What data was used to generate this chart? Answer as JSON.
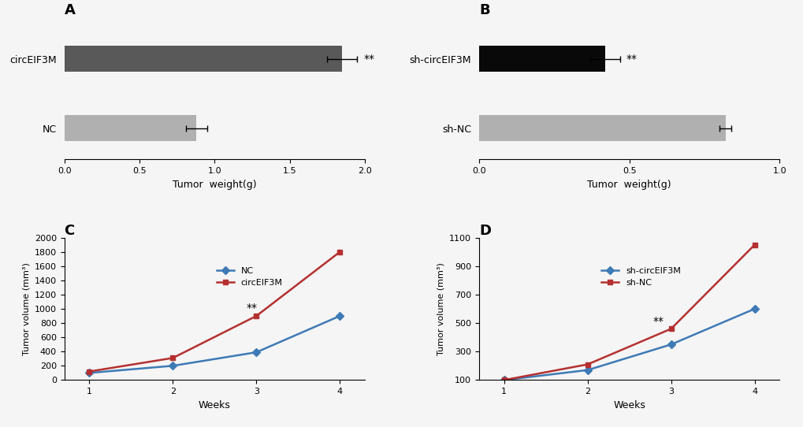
{
  "panelA": {
    "labels": [
      "circEIF3M",
      "NC"
    ],
    "values": [
      1.85,
      0.88
    ],
    "errors": [
      0.1,
      0.07
    ],
    "colors": [
      "#595959",
      "#b0b0b0"
    ],
    "xlim": [
      0,
      2.0
    ],
    "xticks": [
      0,
      0.5,
      1.0,
      1.5,
      2.0
    ],
    "xlabel": "Tumor  weight(g)",
    "title": "A"
  },
  "panelB": {
    "labels": [
      "sh-circEIF3M",
      "sh-NC"
    ],
    "values": [
      0.42,
      0.82
    ],
    "errors": [
      0.05,
      0.02
    ],
    "colors": [
      "#090909",
      "#b0b0b0"
    ],
    "xlim": [
      0,
      1.0
    ],
    "xticks": [
      0,
      0.5,
      1.0
    ],
    "xlabel": "Tumor  weight(g)",
    "title": "B"
  },
  "panelC": {
    "weeks": [
      1,
      2,
      3,
      4
    ],
    "NC": [
      100,
      200,
      390,
      900
    ],
    "circEIF3M": [
      120,
      310,
      900,
      1800
    ],
    "NC_color": "#3e7ab5",
    "circEIF3M_color": "#b53030",
    "ylim": [
      0,
      2000
    ],
    "yticks": [
      0,
      200,
      400,
      600,
      800,
      1000,
      1200,
      1400,
      1600,
      1800,
      2000
    ],
    "xlabel": "Weeks",
    "ylabel": "Tumor volume (mm³)",
    "title": "C",
    "annot_week": 3,
    "annot_text": "**"
  },
  "panelD": {
    "weeks": [
      1,
      2,
      3,
      4
    ],
    "sh_circEIF3M": [
      100,
      170,
      350,
      600
    ],
    "sh_NC": [
      100,
      210,
      460,
      1050
    ],
    "sh_circEIF3M_color": "#3e7ab5",
    "sh_NC_color": "#b53030",
    "ylim": [
      100,
      1100
    ],
    "yticks": [
      100,
      300,
      500,
      700,
      900,
      1100
    ],
    "xlabel": "Weeks",
    "ylabel": "Tumor volume (mm³)",
    "title": "D",
    "annot_week": 3,
    "annot_text": "**"
  },
  "background_color": "#f5f5f5",
  "star_text": "**"
}
